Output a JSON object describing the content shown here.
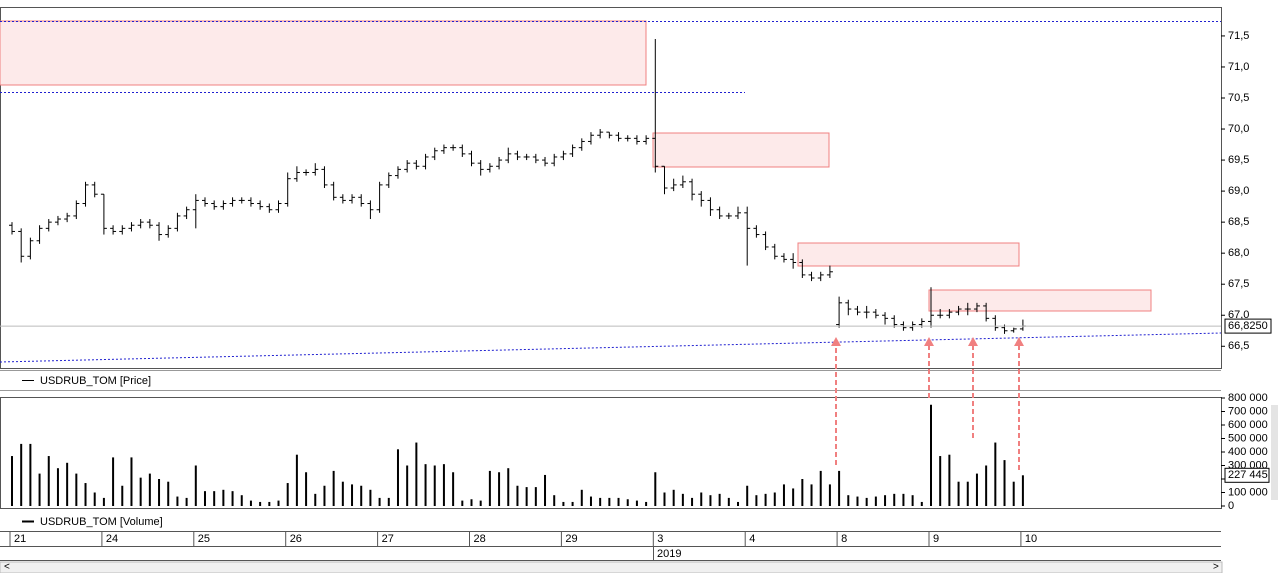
{
  "chart_data": [
    {
      "type": "ohlc",
      "series": [
        {
          "name": "USDRUB_TOM [Price]",
          "color": "#000000",
          "open": [
            68.45,
            68.35,
            67.95,
            68.2,
            68.4,
            68.5,
            68.55,
            68.6,
            68.8,
            69.1,
            68.95,
            68.4,
            68.35,
            68.4,
            68.45,
            68.5,
            68.45,
            68.3,
            68.4,
            68.6,
            68.7,
            68.85,
            68.8,
            68.75,
            68.8,
            68.85,
            68.85,
            68.8,
            68.75,
            68.7,
            68.8,
            69.2,
            69.3,
            69.3,
            69.35,
            69.1,
            68.9,
            68.85,
            68.9,
            68.8,
            68.7,
            69.1,
            69.25,
            69.35,
            69.45,
            69.4,
            69.55,
            69.65,
            69.7,
            69.7,
            69.6,
            69.45,
            69.35,
            69.4,
            69.5,
            69.6,
            69.55,
            69.55,
            69.5,
            69.45,
            69.55,
            69.6,
            69.7,
            69.8,
            69.9,
            69.95,
            69.9,
            69.85,
            69.85,
            69.8,
            69.85,
            69.4,
            69.05,
            69.1,
            69.15,
            68.95,
            68.85,
            68.7,
            68.6,
            68.6,
            68.65,
            68.4,
            68.3,
            68.1,
            67.95,
            67.9,
            67.85,
            67.65,
            67.6,
            67.65,
            66.85,
            67.2,
            67.1,
            67.05,
            67.05,
            67.0,
            66.95,
            66.85,
            66.8,
            66.85,
            66.9,
            67.0,
            67.0,
            67.05,
            67.1,
            67.1,
            67.15,
            66.95,
            66.8,
            66.75,
            66.78
          ],
          "high": [
            68.5,
            68.4,
            68.25,
            68.45,
            68.55,
            68.6,
            68.65,
            68.85,
            69.15,
            69.15,
            68.95,
            68.45,
            68.45,
            68.5,
            68.55,
            68.55,
            68.5,
            68.45,
            68.65,
            68.75,
            68.95,
            68.9,
            68.85,
            68.85,
            68.9,
            68.9,
            68.9,
            68.85,
            68.8,
            68.85,
            69.3,
            69.4,
            69.35,
            69.45,
            69.4,
            69.15,
            68.95,
            68.95,
            68.95,
            68.85,
            69.15,
            69.3,
            69.4,
            69.5,
            69.5,
            69.6,
            69.7,
            69.75,
            69.75,
            69.75,
            69.65,
            69.5,
            69.45,
            69.55,
            69.7,
            69.65,
            69.6,
            69.6,
            69.55,
            69.6,
            69.65,
            69.75,
            69.85,
            69.95,
            70.0,
            69.95,
            69.95,
            69.9,
            69.9,
            69.9,
            71.45,
            69.4,
            69.2,
            69.25,
            69.2,
            69.0,
            68.9,
            68.75,
            68.65,
            68.75,
            68.75,
            68.45,
            68.35,
            68.15,
            68.0,
            68.0,
            67.9,
            67.7,
            67.7,
            67.8,
            67.3,
            67.25,
            67.15,
            67.15,
            67.1,
            67.05,
            67.0,
            66.9,
            66.9,
            66.95,
            67.45,
            67.1,
            67.1,
            67.15,
            67.2,
            67.2,
            67.2,
            67.0,
            66.85,
            66.8,
            66.93
          ],
          "low": [
            68.3,
            67.85,
            67.9,
            68.15,
            68.35,
            68.45,
            68.5,
            68.55,
            68.75,
            68.9,
            68.3,
            68.3,
            68.3,
            68.35,
            68.4,
            68.4,
            68.2,
            68.25,
            68.35,
            68.55,
            68.4,
            68.75,
            68.7,
            68.7,
            68.75,
            68.8,
            68.75,
            68.7,
            68.65,
            68.65,
            68.75,
            69.15,
            69.25,
            69.25,
            69.05,
            68.85,
            68.8,
            68.8,
            68.75,
            68.55,
            68.65,
            69.05,
            69.2,
            69.3,
            69.35,
            69.35,
            69.5,
            69.6,
            69.65,
            69.55,
            69.4,
            69.25,
            69.3,
            69.35,
            69.45,
            69.5,
            69.5,
            69.45,
            69.4,
            69.4,
            69.5,
            69.55,
            69.65,
            69.75,
            69.85,
            69.85,
            69.8,
            69.8,
            69.75,
            69.75,
            69.3,
            68.95,
            69.0,
            69.05,
            68.85,
            68.75,
            68.6,
            68.55,
            68.55,
            68.55,
            67.8,
            68.25,
            68.05,
            67.9,
            67.85,
            67.75,
            67.6,
            67.55,
            67.55,
            67.6,
            66.8,
            67.0,
            67.0,
            66.95,
            66.95,
            66.85,
            66.8,
            66.75,
            66.75,
            66.8,
            66.8,
            66.95,
            66.95,
            67.0,
            67.0,
            67.05,
            66.9,
            66.75,
            66.7,
            66.72,
            66.75
          ],
          "close": [
            68.35,
            67.95,
            68.2,
            68.4,
            68.5,
            68.55,
            68.6,
            68.8,
            69.1,
            68.95,
            68.4,
            68.35,
            68.4,
            68.45,
            68.5,
            68.45,
            68.3,
            68.4,
            68.6,
            68.7,
            68.85,
            68.8,
            68.75,
            68.8,
            68.85,
            68.85,
            68.8,
            68.75,
            68.7,
            68.8,
            69.2,
            69.3,
            69.3,
            69.35,
            69.1,
            68.9,
            68.85,
            68.9,
            68.8,
            68.7,
            69.1,
            69.25,
            69.35,
            69.45,
            69.4,
            69.55,
            69.65,
            69.7,
            69.7,
            69.6,
            69.45,
            69.35,
            69.4,
            69.5,
            69.6,
            69.55,
            69.55,
            69.5,
            69.45,
            69.55,
            69.6,
            69.7,
            69.8,
            69.9,
            69.95,
            69.9,
            69.85,
            69.85,
            69.8,
            69.85,
            69.4,
            69.05,
            69.1,
            69.15,
            68.95,
            68.85,
            68.7,
            68.6,
            68.6,
            68.65,
            68.4,
            68.3,
            68.1,
            67.95,
            67.9,
            67.85,
            67.65,
            67.6,
            67.65,
            67.7,
            67.2,
            67.1,
            67.05,
            67.05,
            67.0,
            66.95,
            66.85,
            66.8,
            66.85,
            66.9,
            67.0,
            67.0,
            67.05,
            67.1,
            67.1,
            67.15,
            66.95,
            66.8,
            66.75,
            66.78,
            66.825
          ],
          "last_label": "66,8250"
        }
      ],
      "ylim": [
        66.15,
        71.95
      ],
      "yticks": [
        {
          "value": 66.5,
          "label": "66,5"
        },
        {
          "value": 67.0,
          "label": "67,0"
        },
        {
          "value": 67.5,
          "label": "67,5"
        },
        {
          "value": 68.0,
          "label": "68,0"
        },
        {
          "value": 68.5,
          "label": "68,5"
        },
        {
          "value": 69.0,
          "label": "69,0"
        },
        {
          "value": 69.5,
          "label": "69,5"
        },
        {
          "value": 70.0,
          "label": "70,0"
        },
        {
          "value": 70.5,
          "label": "70,5"
        },
        {
          "value": 71.0,
          "label": "71,0"
        },
        {
          "value": 71.5,
          "label": "71,5"
        }
      ]
    },
    {
      "type": "bar",
      "series": [
        {
          "name": "USDRUB_TOM [Volume]",
          "color": "#000000",
          "values": [
            370000,
            460000,
            460000,
            240000,
            370000,
            280000,
            320000,
            240000,
            170000,
            100000,
            60000,
            360000,
            150000,
            360000,
            210000,
            240000,
            200000,
            180000,
            70000,
            60000,
            300000,
            110000,
            110000,
            120000,
            110000,
            80000,
            40000,
            30000,
            30000,
            40000,
            170000,
            380000,
            250000,
            90000,
            150000,
            260000,
            180000,
            160000,
            150000,
            120000,
            60000,
            60000,
            420000,
            300000,
            470000,
            310000,
            300000,
            310000,
            250000,
            40000,
            50000,
            40000,
            260000,
            250000,
            280000,
            150000,
            140000,
            140000,
            230000,
            80000,
            30000,
            30000,
            120000,
            70000,
            60000,
            60000,
            60000,
            50000,
            40000,
            30000,
            250000,
            100000,
            120000,
            90000,
            60000,
            100000,
            80000,
            90000,
            60000,
            30000,
            150000,
            80000,
            90000,
            100000,
            160000,
            130000,
            200000,
            160000,
            260000,
            160000,
            260000,
            80000,
            70000,
            60000,
            70000,
            80000,
            90000,
            90000,
            80000,
            30000,
            750000,
            370000,
            380000,
            180000,
            180000,
            240000,
            300000,
            470000,
            340000,
            180000,
            227445
          ],
          "last_label": "227 445"
        }
      ],
      "ylim": [
        0,
        800000
      ],
      "yticks": [
        0,
        {
          "value": 100000,
          "label": "100 000"
        },
        {
          "value": 200000,
          "label": "200 000"
        },
        {
          "value": 300000,
          "label": "300 000"
        },
        {
          "value": 400000,
          "label": "400 000"
        },
        {
          "value": 500000,
          "label": "500 000"
        },
        {
          "value": 600000,
          "label": "600 000"
        },
        {
          "value": 700000,
          "label": "700 000"
        },
        {
          "value": 800000,
          "label": "800 000"
        }
      ],
      "categories": [
        "21",
        null,
        null,
        null,
        null,
        null,
        null,
        null,
        null,
        null,
        "24",
        null,
        null,
        null,
        null,
        null,
        null,
        null,
        null,
        null,
        "25",
        null,
        null,
        null,
        null,
        null,
        null,
        null,
        null,
        null,
        "26",
        null,
        null,
        null,
        null,
        null,
        null,
        null,
        null,
        null,
        "27",
        null,
        null,
        null,
        null,
        null,
        null,
        null,
        null,
        null,
        "28",
        null,
        null,
        null,
        null,
        null,
        null,
        null,
        null,
        null,
        "29",
        null,
        null,
        null,
        null,
        null,
        null,
        null,
        null,
        null,
        "3",
        null,
        null,
        null,
        null,
        null,
        null,
        null,
        null,
        null,
        "4",
        null,
        null,
        null,
        null,
        null,
        null,
        null,
        null,
        null,
        "8",
        null,
        null,
        null,
        null,
        null,
        null,
        null,
        null,
        null,
        "9",
        null,
        null,
        null,
        null,
        null,
        null,
        null,
        null,
        null,
        "10"
      ],
      "year": "2019"
    }
  ]
}
